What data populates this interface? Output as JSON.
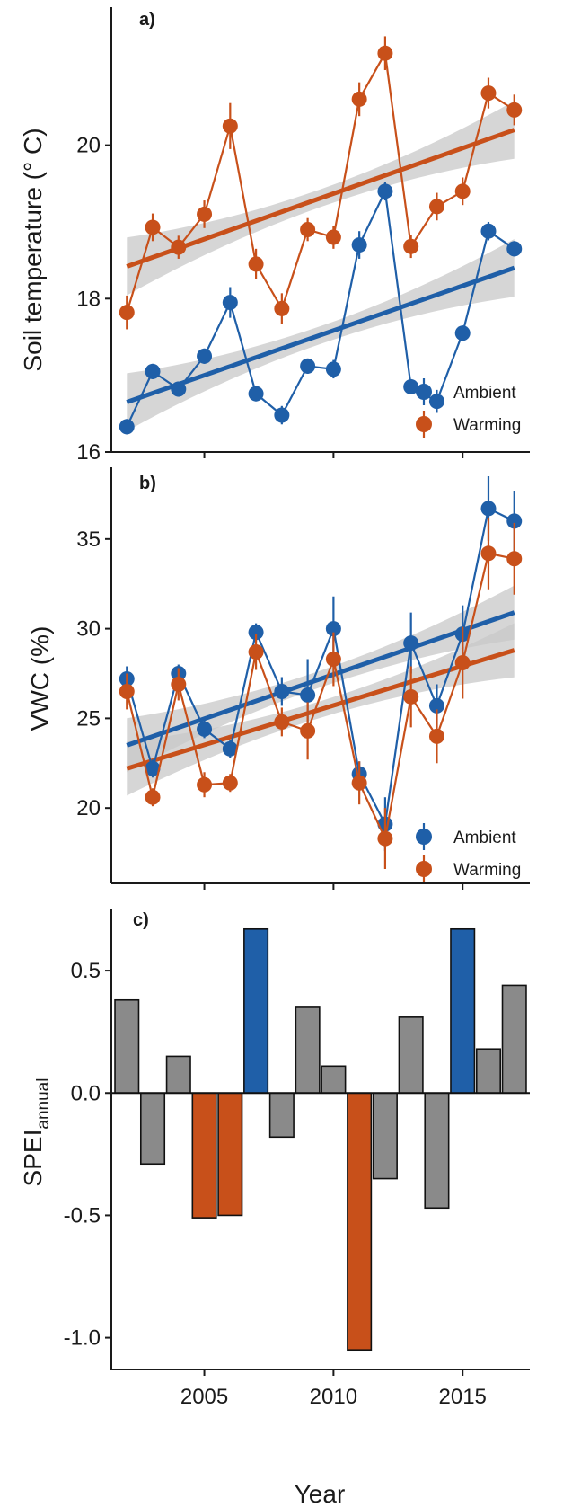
{
  "chart_data": [
    {
      "type": "line",
      "panel_label": "a)",
      "ylabel": "Soil temperature (° C)",
      "xlabel": "",
      "xlim": [
        2001.4,
        2017.6
      ],
      "ylim": [
        16.0,
        21.8
      ],
      "yticks": [
        16,
        18,
        20
      ],
      "xticks": [
        2005,
        2010,
        2015
      ],
      "x": [
        2002,
        2003,
        2004,
        2005,
        2006,
        2007,
        2008,
        2009,
        2010,
        2011,
        2012,
        2013,
        2014,
        2015,
        2016,
        2017
      ],
      "series": [
        {
          "name": "Ambient",
          "color": "#1f5fa8",
          "values": [
            16.33,
            17.05,
            16.82,
            17.25,
            17.95,
            16.76,
            16.48,
            17.12,
            17.08,
            18.7,
            19.4,
            16.85,
            16.66,
            17.55,
            18.88,
            18.65
          ],
          "error": [
            0.1,
            0.1,
            0.1,
            0.1,
            0.2,
            0.1,
            0.12,
            0.1,
            0.12,
            0.18,
            0.12,
            0.1,
            0.15,
            0.1,
            0.12,
            0.1
          ],
          "trend": [
            16.65,
            18.4
          ]
        },
        {
          "name": "Warming",
          "color": "#c8501a",
          "values": [
            17.82,
            18.93,
            18.67,
            19.1,
            20.25,
            18.45,
            17.87,
            18.9,
            18.8,
            20.6,
            21.2,
            18.68,
            19.2,
            19.4,
            20.68,
            20.46
          ],
          "error": [
            0.22,
            0.18,
            0.15,
            0.18,
            0.3,
            0.2,
            0.2,
            0.15,
            0.15,
            0.22,
            0.22,
            0.15,
            0.18,
            0.18,
            0.2,
            0.2
          ],
          "trend": [
            18.42,
            20.2
          ]
        }
      ],
      "legend": "bottom-right",
      "grid": false
    },
    {
      "type": "line",
      "panel_label": "b)",
      "ylabel": "VWC (%)",
      "xlabel": "",
      "xlim": [
        2001.4,
        2017.6
      ],
      "ylim": [
        15.8,
        39.0
      ],
      "yticks": [
        20,
        25,
        30,
        35
      ],
      "xticks": [
        2005,
        2010,
        2015
      ],
      "x": [
        2002,
        2003,
        2004,
        2005,
        2006,
        2007,
        2008,
        2009,
        2010,
        2011,
        2012,
        2013,
        2014,
        2015,
        2016,
        2017
      ],
      "series": [
        {
          "name": "Ambient",
          "color": "#1f5fa8",
          "values": [
            27.2,
            22.2,
            27.5,
            24.4,
            23.3,
            29.8,
            26.5,
            26.3,
            30.0,
            21.9,
            19.1,
            29.2,
            25.7,
            29.7,
            36.7,
            36.0
          ],
          "error": [
            0.7,
            0.5,
            0.5,
            0.5,
            0.5,
            0.5,
            0.8,
            2.0,
            1.8,
            0.7,
            1.5,
            1.7,
            1.2,
            1.6,
            1.8,
            1.7
          ],
          "trend": [
            23.5,
            30.9
          ]
        },
        {
          "name": "Warming",
          "color": "#c8501a",
          "values": [
            26.5,
            20.6,
            26.9,
            21.3,
            21.4,
            28.7,
            24.8,
            24.3,
            28.3,
            21.4,
            18.3,
            26.2,
            24.0,
            28.1,
            34.2,
            33.9
          ],
          "error": [
            1.0,
            0.5,
            0.9,
            0.7,
            0.5,
            1.0,
            0.8,
            1.6,
            1.5,
            1.2,
            1.7,
            1.7,
            1.5,
            2.0,
            2.0,
            2.0
          ],
          "trend": [
            22.2,
            28.8
          ]
        }
      ],
      "legend": "bottom-right",
      "grid": false
    },
    {
      "type": "bar",
      "panel_label": "c)",
      "ylabel": "SPEI",
      "ylabel_subscript": "annual",
      "xlabel": "Year",
      "xlim": [
        2001.4,
        2017.6
      ],
      "ylim": [
        -1.13,
        0.75
      ],
      "yticks": [
        "0.5",
        "0.0",
        "-0.5",
        "-1.0"
      ],
      "xticks": [
        2005,
        2010,
        2015
      ],
      "categories": [
        2002,
        2003,
        2004,
        2005,
        2006,
        2007,
        2008,
        2009,
        2010,
        2011,
        2012,
        2013,
        2014,
        2015,
        2016,
        2017
      ],
      "values": [
        0.38,
        -0.29,
        0.15,
        -0.51,
        -0.5,
        0.67,
        -0.18,
        0.35,
        0.11,
        -1.05,
        -0.35,
        0.31,
        -0.47,
        0.67,
        0.18,
        0.44
      ],
      "bar_colors": [
        "#8a8a8a",
        "#8a8a8a",
        "#8a8a8a",
        "#c8501a",
        "#c8501a",
        "#1f5fa8",
        "#8a8a8a",
        "#8a8a8a",
        "#8a8a8a",
        "#c8501a",
        "#8a8a8a",
        "#8a8a8a",
        "#8a8a8a",
        "#1f5fa8",
        "#8a8a8a",
        "#8a8a8a"
      ],
      "grid": false
    }
  ],
  "colors": {
    "ambient": "#1f5fa8",
    "warming": "#c8501a",
    "neutral": "#8a8a8a",
    "ribbon": "#c8c8c8"
  }
}
